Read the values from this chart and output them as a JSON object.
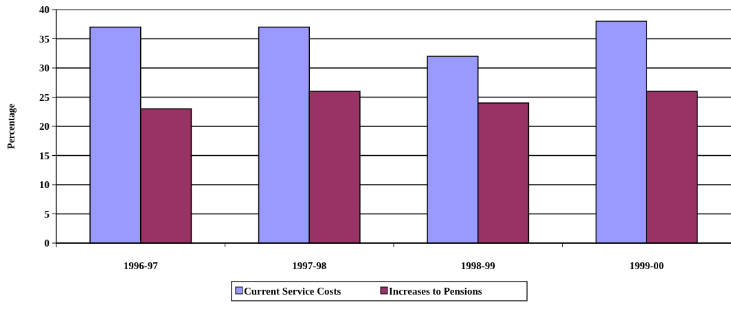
{
  "chart_data": {
    "type": "bar",
    "ylabel": "Percentage",
    "categories": [
      "1996-97",
      "1997-98",
      "1998-99",
      "1999-00"
    ],
    "series": [
      {
        "name": "Current Service Costs",
        "color": "#9999ff",
        "values": [
          37,
          37,
          32,
          38
        ]
      },
      {
        "name": "Increases to Pensions",
        "color": "#993366",
        "values": [
          23,
          26,
          24,
          26
        ]
      }
    ],
    "ylim": [
      0,
      40
    ],
    "yticks": [
      0,
      5,
      10,
      15,
      20,
      25,
      30,
      35,
      40
    ],
    "grid": "y",
    "legend": "bottom"
  }
}
